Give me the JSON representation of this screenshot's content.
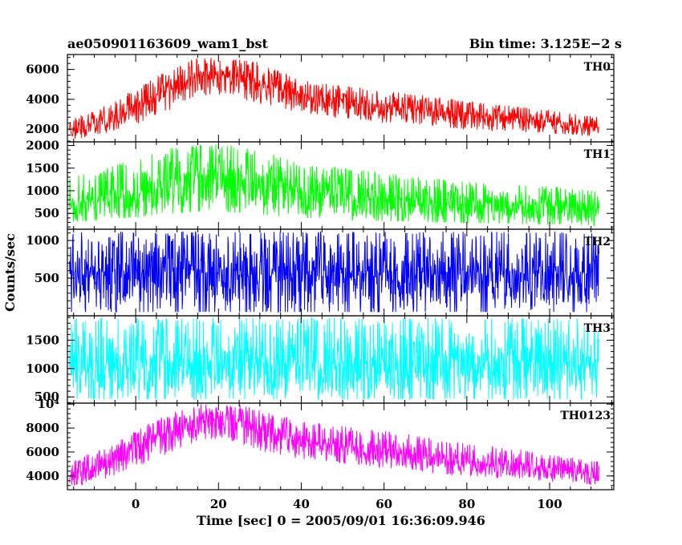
{
  "chart_data": {
    "type": "line",
    "title_left": "ae050901163609_wam1_bst",
    "title_right": "Bin time: 3.125E−2 s",
    "xlabel": "Time [sec] 0 = 2005/09/01 16:36:09.946",
    "ylabel": "Counts/sec",
    "xlim": [
      -16.5,
      115.5
    ],
    "x_data_range": [
      -16,
      112
    ],
    "xticks": [
      0,
      20,
      40,
      60,
      80,
      100
    ],
    "xtick_labels": [
      "0",
      "20",
      "40",
      "60",
      "80",
      "100"
    ],
    "panels": [
      {
        "name": "TH0",
        "color": "#ff0000",
        "ylim": [
          1150,
          7000
        ],
        "yticks": [
          2000,
          4000,
          6000
        ],
        "ytick_labels": [
          "2000",
          "4000",
          "6000"
        ],
        "envelope": {
          "x": [
            -16,
            -10,
            0,
            10,
            15,
            20,
            25,
            30,
            40,
            60,
            80,
            100,
            112
          ],
          "mean": [
            1800,
            2300,
            3500,
            5000,
            5600,
            5700,
            5500,
            5000,
            4300,
            3500,
            3000,
            2500,
            2100
          ],
          "min": [
            1300,
            1500,
            2300,
            3500,
            4200,
            4300,
            4100,
            3600,
            3000,
            2400,
            2000,
            1700,
            1500
          ],
          "max": [
            2700,
            3200,
            4700,
            6400,
            6800,
            6800,
            6700,
            6500,
            5300,
            4600,
            3900,
            3300,
            2800
          ]
        }
      },
      {
        "name": "TH1",
        "color": "#00ff00",
        "ylim": [
          150,
          2080
        ],
        "yticks": [
          500,
          1000,
          1500,
          2000
        ],
        "ytick_labels": [
          "500",
          "1000",
          "1500",
          "2000"
        ],
        "envelope": {
          "x": [
            -16,
            0,
            10,
            20,
            30,
            40,
            60,
            80,
            100,
            112
          ],
          "mean": [
            700,
            950,
            1250,
            1350,
            1150,
            1000,
            850,
            700,
            650,
            600
          ],
          "min": [
            300,
            400,
            500,
            550,
            450,
            400,
            330,
            280,
            250,
            230
          ],
          "max": [
            1300,
            1700,
            2000,
            2050,
            1900,
            1600,
            1400,
            1200,
            1100,
            1000
          ]
        }
      },
      {
        "name": "TH2",
        "color": "#0000ff",
        "ylim": [
          0,
          1150
        ],
        "yticks": [
          500,
          1000
        ],
        "ytick_labels": [
          "500",
          "1000"
        ],
        "envelope": {
          "x": [
            -16,
            112
          ],
          "mean": [
            580,
            580
          ],
          "min": [
            50,
            50
          ],
          "max": [
            1120,
            1120
          ]
        }
      },
      {
        "name": "TH3",
        "color": "#00ffff",
        "ylim": [
          390,
          1930
        ],
        "yticks": [
          500,
          1000,
          1500
        ],
        "ytick_labels": [
          "500",
          "1000",
          "1500"
        ],
        "envelope": {
          "x": [
            -16,
            112
          ],
          "mean": [
            1100,
            1100
          ],
          "min": [
            450,
            450
          ],
          "max": [
            1900,
            1900
          ]
        }
      },
      {
        "name": "TH0123",
        "color": "#ff00ff",
        "ylim": [
          2850,
          10080
        ],
        "yticks": [
          4000,
          6000,
          8000,
          10000
        ],
        "ytick_labels": [
          "4000",
          "6000",
          "8000",
          "10⁴"
        ],
        "envelope": {
          "x": [
            -16,
            -10,
            0,
            10,
            15,
            20,
            25,
            30,
            40,
            60,
            80,
            100,
            112
          ],
          "mean": [
            4000,
            4600,
            6300,
            8000,
            8700,
            8900,
            8600,
            7800,
            7000,
            6100,
            5200,
            4700,
            4300
          ],
          "min": [
            3100,
            3400,
            4700,
            6200,
            6900,
            7000,
            6800,
            6100,
            5400,
            4600,
            3900,
            3500,
            3200
          ],
          "max": [
            5300,
            6000,
            7800,
            9500,
            10000,
            10000,
            10000,
            9500,
            8600,
            7800,
            6700,
            5900,
            5200
          ]
        }
      }
    ]
  }
}
